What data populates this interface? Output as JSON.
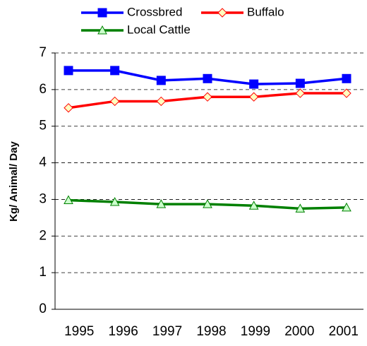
{
  "chart_data": {
    "type": "line",
    "categories": [
      "1995",
      "1996",
      "1997",
      "1998",
      "1999",
      "2000",
      "2001"
    ],
    "y_label": "Kg/ Animal/ Day",
    "ylim": [
      0,
      7
    ],
    "yticks": [
      0,
      1,
      2,
      3,
      4,
      5,
      6,
      7
    ],
    "grid": true,
    "series": [
      {
        "name": "Crossbred",
        "color": "#0000ff",
        "marker": "square",
        "values": [
          6.52,
          6.52,
          6.25,
          6.3,
          6.15,
          6.17,
          6.3
        ]
      },
      {
        "name": "Buffalo",
        "color": "#ff0000",
        "marker": "diamond",
        "values": [
          5.5,
          5.68,
          5.68,
          5.8,
          5.8,
          5.9,
          5.9
        ]
      },
      {
        "name": "Local Cattle",
        "color": "#008000",
        "marker": "triangle",
        "values": [
          2.98,
          2.93,
          2.87,
          2.87,
          2.83,
          2.75,
          2.78
        ]
      }
    ]
  }
}
